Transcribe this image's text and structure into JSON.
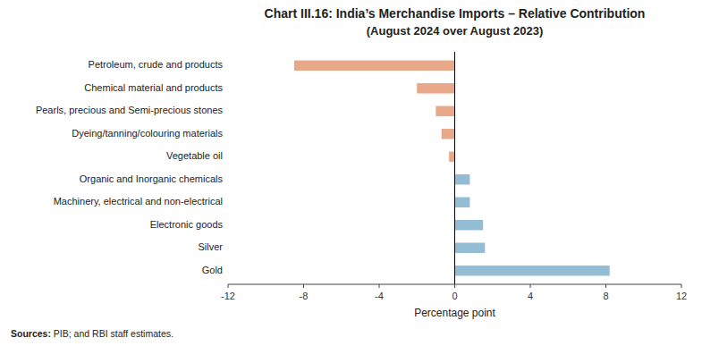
{
  "chart_data": {
    "type": "bar",
    "orientation": "horizontal",
    "title": "Chart III.16: India’s Merchandise Imports – Relative Contribution",
    "subtitle": "(August 2024 over August 2023)",
    "categories": [
      "Gold",
      "Silver",
      "Electronic goods",
      "Machinery, electrical and non-electrical",
      "Organic and Inorganic chemicals",
      "Vegetable oil",
      "Dyeing/tanning/colouring materials",
      "Pearls, precious and Semi-precious stones",
      "Chemical material and products",
      "Petroleum, crude and products"
    ],
    "values": [
      8.2,
      1.6,
      1.5,
      0.8,
      0.8,
      -0.3,
      -0.7,
      -1.0,
      -2.0,
      -8.5
    ],
    "colors": [
      "#92bdd4",
      "#92bdd4",
      "#92bdd4",
      "#92bdd4",
      "#92bdd4",
      "#e8a98a",
      "#e8a98a",
      "#e8a98a",
      "#e8a98a",
      "#e8a98a"
    ],
    "x_label": "Percentage point",
    "xlim": [
      -12,
      12
    ],
    "xticks": [
      -12,
      -8,
      -4,
      0,
      4,
      8,
      12
    ],
    "grid": false,
    "annotations": [
      "Sources:",
      " PIB; and RBI staff estimates."
    ]
  }
}
